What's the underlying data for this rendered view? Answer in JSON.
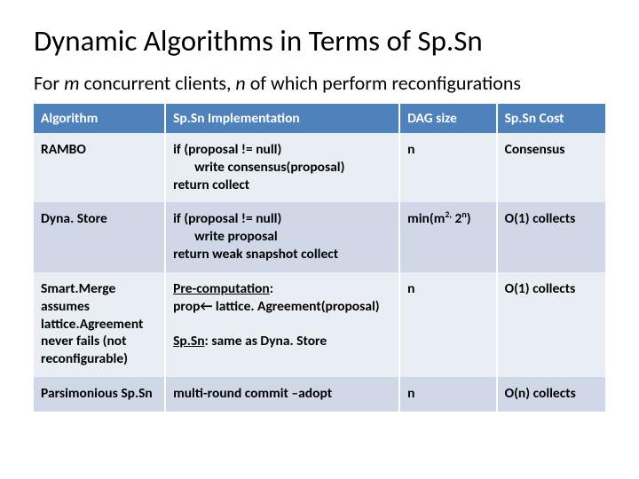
{
  "title": "Dynamic Algorithms in Terms of Sp.Sn",
  "subtitle_prefix": "For ",
  "subtitle_m": "m",
  "subtitle_mid1": " concurrent clients, ",
  "subtitle_n": "n",
  "subtitle_suffix": " of which perform reconfigurations",
  "headers": {
    "c0": "Algorithm",
    "c1": "Sp.Sn Implementation",
    "c2": "DAG size",
    "c3": "Sp.Sn Cost"
  },
  "rows": {
    "r0": {
      "alg": "RAMBO",
      "impl_l1": "if (proposal != null)",
      "impl_l2": "write consensus(proposal)",
      "impl_l3": "return collect",
      "dag": "n",
      "cost": "Consensus"
    },
    "r1": {
      "alg": "Dyna. Store",
      "impl_l1": "if (proposal != null)",
      "impl_l2": "write proposal",
      "impl_l3": "return weak snapshot collect",
      "dag_pre": "min(m",
      "dag_sup1": "2,",
      "dag_mid": " 2",
      "dag_sup2": "n",
      "dag_post": ")",
      "cost": "O(1) collects"
    },
    "r2": {
      "alg_l1": "Smart.Merge",
      "alg_l2": "assumes lattice.Agreement never fails (not reconfigurable)",
      "impl_pre_label": "Pre-computation",
      "impl_pre_colon": ":",
      "impl_pre_line": "prop← lattice. Agreement(proposal)",
      "impl_spsn_label": "Sp.Sn",
      "impl_spsn_rest": ": same as Dyna. Store",
      "dag": "n",
      "cost": "O(1) collects"
    },
    "r3": {
      "alg": "Parsimonious Sp.Sn",
      "impl": "multi-round commit –adopt",
      "dag": "n",
      "cost": "O(n) collects"
    }
  },
  "colors": {
    "header_bg": "#4f81bd",
    "row_odd": "#e9edf4",
    "row_even": "#d0d8e8",
    "text": "#000000",
    "header_text": "#ffffff"
  },
  "fonts": {
    "title_size_pt": 25,
    "subtitle_size_pt": 17,
    "table_size_pt": 12,
    "family": "Calibri"
  }
}
